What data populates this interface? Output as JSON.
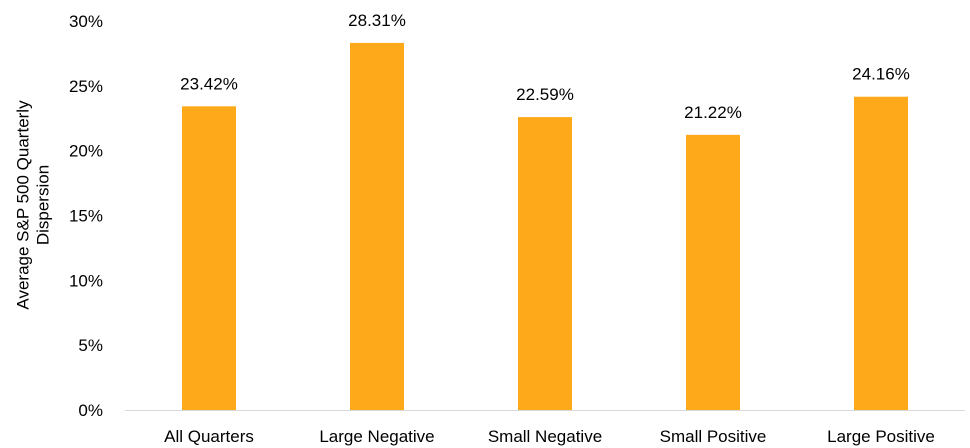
{
  "chart_data": {
    "type": "bar",
    "categories": [
      "All Quarters",
      "Large Negative",
      "Small Negative",
      "Small Positive",
      "Large Positive"
    ],
    "values": [
      23.42,
      28.31,
      22.59,
      21.22,
      24.16
    ],
    "data_labels": [
      "23.42%",
      "28.31%",
      "22.59%",
      "21.22%",
      "24.16%"
    ],
    "ylabel_lines": [
      "Average S&P 500 Quarterly",
      "Dispersion"
    ],
    "ylim": [
      0,
      30
    ],
    "yticks": [
      0,
      5,
      10,
      15,
      20,
      25,
      30
    ],
    "ytick_labels": [
      "0%",
      "5%",
      "10%",
      "15%",
      "20%",
      "25%",
      "30%"
    ],
    "grid": false,
    "legend": "none",
    "bar_color": "#FDA91A",
    "axis_color": "#D9D9D9"
  }
}
